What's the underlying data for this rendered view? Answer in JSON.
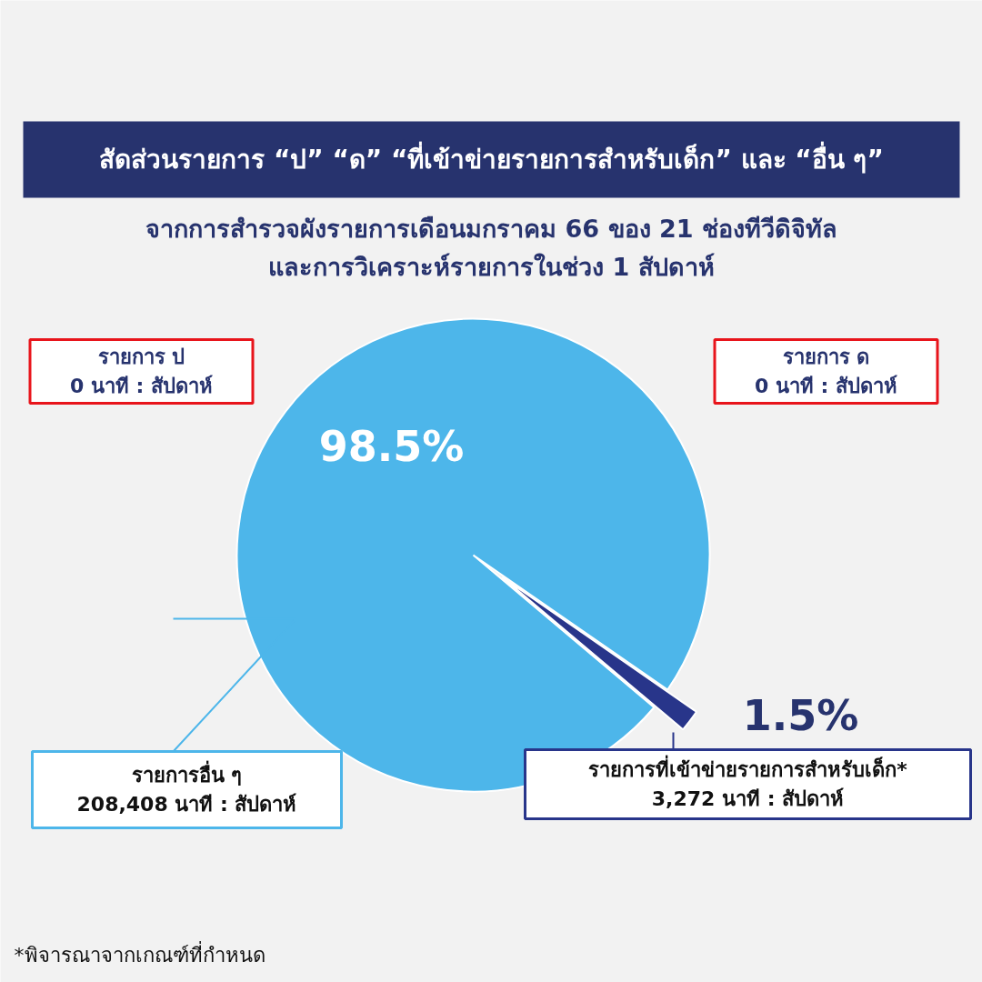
{
  "chart_data": {
    "type": "pie",
    "title": "สัดส่วนรายการ “ป” “ด” “ที่เข้าข่ายรายการสำหรับเด็ก” และ “อื่น ๆ”",
    "subtitle": "จากการสำรวจผังรายการเดือนมกราคม 66 ของ 21 ช่องทีวีดิจิทัล\nและการวิเคราะห์รายการในช่วง 1 สัปดาห์",
    "categories": [
      "รายการอื่น ๆ",
      "รายการที่เข้าข่ายรายการสำหรับเด็ก*"
    ],
    "values": [
      98.5,
      1.5
    ],
    "colors": [
      "#4db6ea",
      "#28358a"
    ],
    "value_labels": [
      "98.5%",
      "1.5%"
    ],
    "annotations": [
      "208,408 นาที : สัปดาห์",
      "3,272 นาที : สัปดาห์",
      "รายการ ป\n0 นาที : สัปดาห์",
      "รายการ ด\n0 นาที : สัปดาห์",
      "*พิจารณาจากเกณฑ์ที่กำหนด"
    ],
    "legend": false
  }
}
